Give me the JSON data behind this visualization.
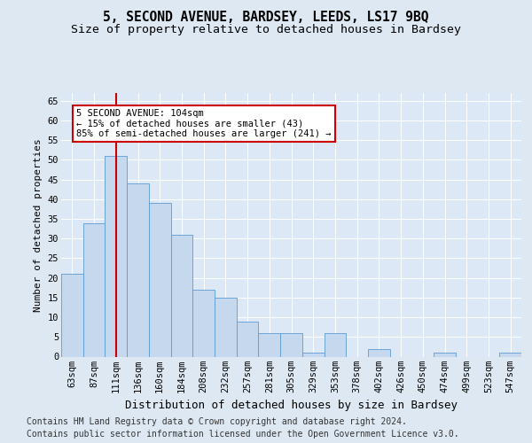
{
  "title": "5, SECOND AVENUE, BARDSEY, LEEDS, LS17 9BQ",
  "subtitle": "Size of property relative to detached houses in Bardsey",
  "xlabel": "Distribution of detached houses by size in Bardsey",
  "ylabel": "Number of detached properties",
  "categories": [
    "63sqm",
    "87sqm",
    "111sqm",
    "136sqm",
    "160sqm",
    "184sqm",
    "208sqm",
    "232sqm",
    "257sqm",
    "281sqm",
    "305sqm",
    "329sqm",
    "353sqm",
    "378sqm",
    "402sqm",
    "426sqm",
    "450sqm",
    "474sqm",
    "499sqm",
    "523sqm",
    "547sqm"
  ],
  "values": [
    21,
    34,
    51,
    44,
    39,
    31,
    17,
    15,
    9,
    6,
    6,
    1,
    6,
    0,
    2,
    0,
    0,
    1,
    0,
    0,
    1
  ],
  "bar_color": "#c5d8ed",
  "bar_edge_color": "#5b9bd5",
  "background_color": "#dde8f3",
  "plot_bg_color": "#dce8f5",
  "red_line_index": 2,
  "red_line_color": "#cc0000",
  "annotation_line1": "5 SECOND AVENUE: 104sqm",
  "annotation_line2": "← 15% of detached houses are smaller (43)",
  "annotation_line3": "85% of semi-detached houses are larger (241) →",
  "annotation_box_color": "#cc0000",
  "ylim": [
    0,
    67
  ],
  "yticks": [
    0,
    5,
    10,
    15,
    20,
    25,
    30,
    35,
    40,
    45,
    50,
    55,
    60,
    65
  ],
  "footer_line1": "Contains HM Land Registry data © Crown copyright and database right 2024.",
  "footer_line2": "Contains public sector information licensed under the Open Government Licence v3.0.",
  "title_fontsize": 10.5,
  "subtitle_fontsize": 9.5,
  "xlabel_fontsize": 9,
  "ylabel_fontsize": 8,
  "tick_fontsize": 7.5,
  "annot_fontsize": 7.5,
  "footer_fontsize": 7
}
